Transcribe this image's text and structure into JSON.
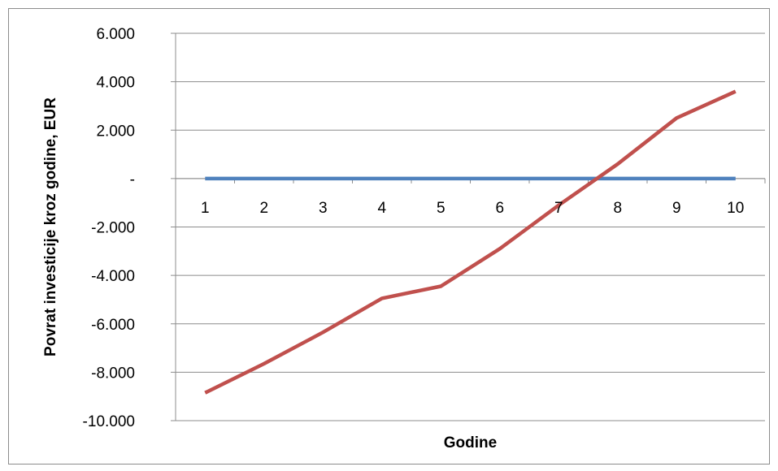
{
  "chart_data": {
    "type": "line",
    "xlabel": "Godine",
    "ylabel": "Povrat investicije kroz godine, EUR",
    "categories": [
      "1",
      "2",
      "3",
      "4",
      "5",
      "6",
      "7",
      "8",
      "9",
      "10"
    ],
    "ylim": [
      -10000,
      6000
    ],
    "yticks": [
      {
        "value": 6000,
        "label": "6.000"
      },
      {
        "value": 4000,
        "label": "4.000"
      },
      {
        "value": 2000,
        "label": "2.000"
      },
      {
        "value": 0,
        "label": "-"
      },
      {
        "value": -2000,
        "label": "-2.000"
      },
      {
        "value": -4000,
        "label": "-4.000"
      },
      {
        "value": -6000,
        "label": "-6.000"
      },
      {
        "value": -8000,
        "label": "-8.000"
      },
      {
        "value": -10000,
        "label": "-10.000"
      }
    ],
    "grid": true,
    "series": [
      {
        "color": "#4f81bd",
        "values": [
          0,
          0,
          0,
          0,
          0,
          0,
          0,
          0,
          0,
          0
        ]
      },
      {
        "color": "#c0504d",
        "values": [
          -8850,
          -7650,
          -6350,
          -4950,
          -4450,
          -2900,
          -1100,
          600,
          2500,
          3600
        ]
      }
    ]
  }
}
